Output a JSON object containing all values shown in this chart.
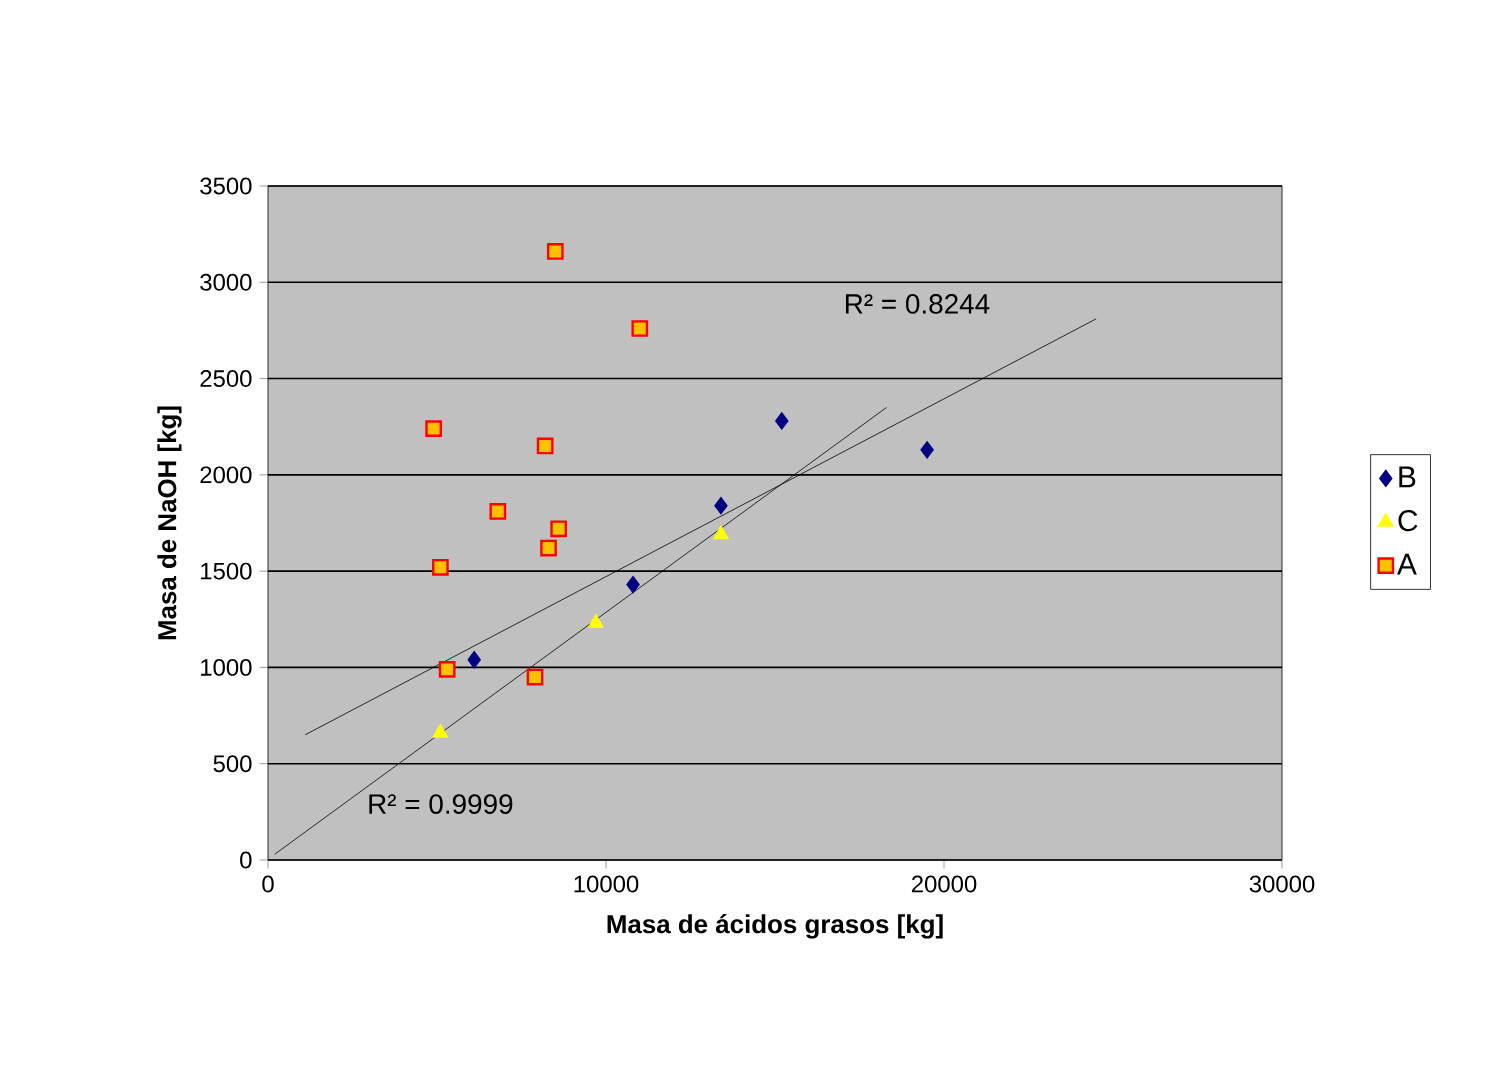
{
  "chart_data": {
    "type": "scatter",
    "xlabel": "Masa de ácidos grasos [kg]",
    "ylabel": "Masa de NaOH [kg]",
    "xlim": [
      0,
      30000
    ],
    "ylim": [
      0,
      3500
    ],
    "xticks": [
      0,
      10000,
      20000,
      30000
    ],
    "yticks": [
      0,
      500,
      1000,
      1500,
      2000,
      2500,
      3000,
      3500
    ],
    "grid": "y",
    "legend": "right",
    "series": [
      {
        "name": "B",
        "color": "#000080",
        "marker": "diamond",
        "x": [
          6100,
          10800,
          13400,
          15200,
          19500
        ],
        "values": [
          1040,
          1430,
          1840,
          2280,
          2130
        ]
      },
      {
        "name": "C",
        "color": "#ffff00",
        "marker": "triangle",
        "x": [
          5100,
          9700,
          13400
        ],
        "values": [
          660,
          1230,
          1690
        ]
      },
      {
        "name": "A",
        "color": "#ffc000",
        "marker": "square",
        "x": [
          8500,
          11000,
          4900,
          8200,
          6800,
          8600,
          8300,
          5100,
          5300,
          7900
        ],
        "values": [
          3160,
          2760,
          2240,
          2150,
          1810,
          1720,
          1620,
          1520,
          990,
          950
        ]
      },
      {
        "type": "line",
        "color": "#000000",
        "marker": "none",
        "x": [
          1100,
          24500
        ],
        "values": [
          650,
          2810
        ]
      },
      {
        "type": "line",
        "color": "#000000",
        "marker": "none",
        "x": [
          200,
          18300
        ],
        "values": [
          30,
          2350
        ]
      }
    ],
    "annotations": [
      "R² = 0.8244",
      "R² = 0.9999"
    ]
  }
}
